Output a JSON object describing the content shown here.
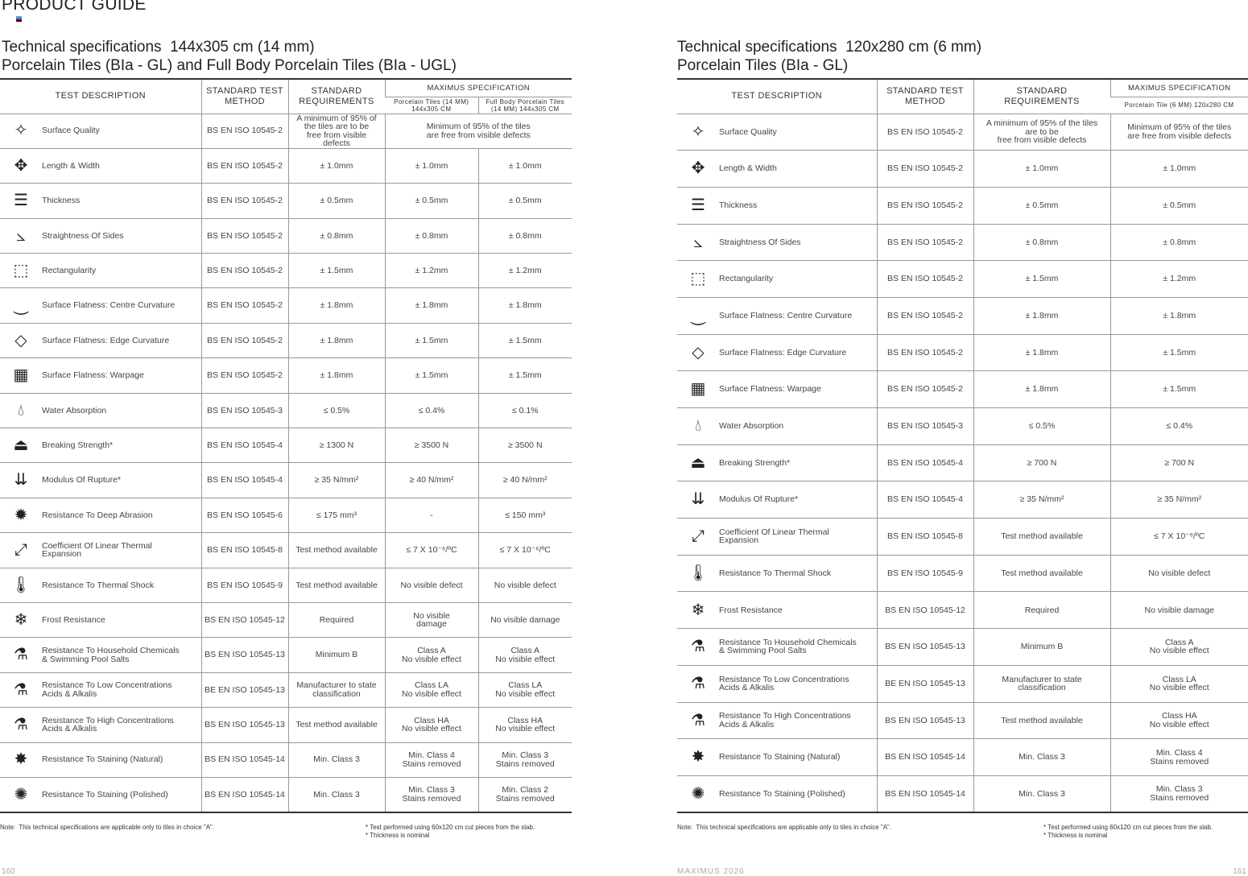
{
  "header": {
    "product_guide": "PRODUCT GUIDE"
  },
  "footer": {
    "left_page": "160",
    "brand": "MAXIMUS 2026",
    "right_page": "161"
  },
  "left": {
    "title": "Technical specifications  144x305 cm (14 mm)\nPorcelain Tiles (BIa - GL) and Full Body Porcelain Tiles (BIa - UGL)",
    "headers": {
      "desc": "TEST DESCRIPTION",
      "method": "STANDARD TEST\nMETHOD",
      "req": "STANDARD\nREQUIREMENTS",
      "spec": "MAXIMUS SPECIFICATION",
      "sub": [
        "Porcelain Tiles (14 MM)\n144x305 CM",
        "Full Body Porcelain Tiles\n(14 MM) 144x305 CM"
      ]
    },
    "rows": [
      {
        "icon": "sparkle-icon",
        "desc": "Surface Quality",
        "method": "BS EN ISO 10545-2",
        "req": "A minimum of 95% of\nthe tiles are to be\nfree from visible\ndefects",
        "merged": "Minimum of 95% of the tiles\nare free from visible defects"
      },
      {
        "icon": "arrows-icon",
        "desc": "Length & Width",
        "method": "BS EN ISO 10545-2",
        "req": "± 1.0mm",
        "vals": [
          "± 1.0mm",
          "± 1.0mm"
        ]
      },
      {
        "icon": "thickness-icon",
        "desc": "Thickness",
        "method": "BS EN ISO 10545-2",
        "req": "± 0.5mm",
        "vals": [
          "± 0.5mm",
          "± 0.5mm"
        ]
      },
      {
        "icon": "angle-icon",
        "desc": "Straightness Of Sides",
        "method": "BS EN ISO 10545-2",
        "req": "± 0.8mm",
        "vals": [
          "± 0.8mm",
          "± 0.8mm"
        ]
      },
      {
        "icon": "dashed-rect-icon",
        "desc": "Rectangularity",
        "method": "BS EN ISO 10545-2",
        "req": "± 1.5mm",
        "vals": [
          "± 1.2mm",
          "± 1.2mm"
        ]
      },
      {
        "icon": "curve-icon",
        "desc": "Surface Flatness: Centre Curvature",
        "method": "BS EN ISO 10545-2",
        "req": "± 1.8mm",
        "vals": [
          "± 1.8mm",
          "± 1.8mm"
        ]
      },
      {
        "icon": "diamond-icon",
        "desc": "Surface Flatness: Edge Curvature",
        "method": "BS EN ISO 10545-2",
        "req": "± 1.8mm",
        "vals": [
          "± 1.5mm",
          "± 1.5mm"
        ]
      },
      {
        "icon": "warp-grid-icon",
        "desc": "Surface Flatness: Warpage",
        "method": "BS EN ISO 10545-2",
        "req": "± 1.8mm",
        "vals": [
          "± 1.5mm",
          "± 1.5mm"
        ]
      },
      {
        "icon": "water-drop-icon",
        "desc": "Water Absorption",
        "method": "BS EN ISO 10545-3",
        "req": "≤ 0.5%",
        "vals": [
          "≤ 0.4%",
          "≤ 0.1%"
        ]
      },
      {
        "icon": "weight-icon",
        "desc": "Breaking Strength*",
        "method": "BS EN ISO 10545-4",
        "req": "≥ 1300 N",
        "vals": [
          "≥ 3500 N",
          "≥ 3500 N"
        ]
      },
      {
        "icon": "pressure-arrows-icon",
        "desc": "Modulus Of Rupture*",
        "method": "BS EN ISO 10545-4",
        "req": "≥ 35 N/mm²",
        "vals": [
          "≥ 40 N/mm²",
          "≥ 40 N/mm²"
        ]
      },
      {
        "icon": "abrasion-icon",
        "desc": "Resistance To Deep Abrasion",
        "method": "BS EN ISO 10545-6",
        "req": "≤ 175 mm³",
        "vals": [
          "-",
          "≤ 150 mm³"
        ]
      },
      {
        "icon": "expand-icon",
        "desc": "Coefficient Of Linear Thermal\nExpansion",
        "method": "BS EN ISO 10545-8",
        "req": "Test method available",
        "vals": [
          "≤ 7 X 10⁻⁶/ºC",
          "≤ 7 X 10⁻⁶/ºC"
        ]
      },
      {
        "icon": "thermometer-icon",
        "desc": "Resistance To Thermal Shock",
        "method": "BS EN ISO 10545-9",
        "req": "Test method available",
        "vals": [
          "No visible defect",
          "No visible defect"
        ]
      },
      {
        "icon": "snowflake-icon",
        "desc": "Frost Resistance",
        "method": "BS EN ISO 10545-12",
        "req": "Required",
        "vals": [
          "No visible\ndamage",
          "No visible damage"
        ]
      },
      {
        "icon": "chemical-drop-icon",
        "desc": "Resistance To Household Chemicals\n& Swimming Pool Salts",
        "method": "BS EN ISO 10545-13",
        "req": "Minimum B",
        "vals": [
          "Class A\nNo visible effect",
          "Class A\nNo visible effect"
        ]
      },
      {
        "icon": "test-tube-icon",
        "desc": "Resistance To Low Concentrations\nAcids & Alkalis",
        "method": "BE EN ISO 10545-13",
        "req": "Manufacturer to state\nclassification",
        "vals": [
          "Class LA\nNo visible effect",
          "Class LA\nNo visible effect"
        ]
      },
      {
        "icon": "test-tube-spill-icon",
        "desc": "Resistance To High Concentrations\nAcids & Alkalis",
        "method": "BS EN ISO 10545-13",
        "req": "Test method available",
        "vals": [
          "Class HA\nNo visible effect",
          "Class HA\nNo visible effect"
        ]
      },
      {
        "icon": "stain-icon",
        "desc": "Resistance To Staining (Natural)",
        "method": "BS EN ISO 10545-14",
        "req": "Min. Class 3",
        "vals": [
          "Min. Class 4\nStains removed",
          "Min. Class 3\nStains removed"
        ]
      },
      {
        "icon": "stain-polished-icon",
        "desc": "Resistance To Staining (Polished)",
        "method": "BS EN ISO 10545-14",
        "req": "Min. Class 3",
        "vals": [
          "Min. Class 3\nStains removed",
          "Min. Class 2\nStains removed"
        ]
      }
    ],
    "note": "Note:  This technical specifications are applicable only to tiles in choice \"A\".",
    "footnote": "* Test performed using 60x120 cm cut pieces from the slab.\n* Thickness is nominal"
  },
  "right": {
    "title": "Technical specifications  120x280 cm (6 mm)\nPorcelain Tiles (BIa - GL)",
    "headers": {
      "desc": "TEST DESCRIPTION",
      "method": "STANDARD TEST\nMETHOD",
      "req": "STANDARD\nREQUIREMENTS",
      "spec": "MAXIMUS SPECIFICATION",
      "sub": [
        "Porcelain Tile (6 MM) 120x280 CM"
      ]
    },
    "rows": [
      {
        "icon": "sparkle-icon",
        "desc": "Surface Quality",
        "method": "BS EN ISO 10545-2",
        "req": "A minimum of 95% of the tiles\nare to be\nfree from visible defects",
        "vals": [
          "Minimum of 95% of the tiles\nare free from visible defects"
        ]
      },
      {
        "icon": "arrows-icon",
        "desc": "Length & Width",
        "method": "BS EN ISO 10545-2",
        "req": "± 1.0mm",
        "vals": [
          "± 1.0mm"
        ]
      },
      {
        "icon": "thickness-icon",
        "desc": "Thickness",
        "method": "BS EN ISO 10545-2",
        "req": "± 0.5mm",
        "vals": [
          "± 0.5mm"
        ]
      },
      {
        "icon": "angle-icon",
        "desc": "Straightness Of Sides",
        "method": "BS EN ISO 10545-2",
        "req": "± 0.8mm",
        "vals": [
          "± 0.8mm"
        ]
      },
      {
        "icon": "dashed-rect-icon",
        "desc": "Rectangularity",
        "method": "BS EN ISO 10545-2",
        "req": "± 1.5mm",
        "vals": [
          "± 1.2mm"
        ]
      },
      {
        "icon": "curve-icon",
        "desc": "Surface Flatness: Centre Curvature",
        "method": "BS EN ISO 10545-2",
        "req": "± 1.8mm",
        "vals": [
          "± 1.8mm"
        ]
      },
      {
        "icon": "diamond-icon",
        "desc": "Surface Flatness: Edge Curvature",
        "method": "BS EN ISO 10545-2",
        "req": "± 1.8mm",
        "vals": [
          "± 1.5mm"
        ]
      },
      {
        "icon": "warp-grid-icon",
        "desc": "Surface Flatness: Warpage",
        "method": "BS EN ISO 10545-2",
        "req": "± 1.8mm",
        "vals": [
          "± 1.5mm"
        ]
      },
      {
        "icon": "water-drop-icon",
        "desc": "Water Absorption",
        "method": "BS EN ISO 10545-3",
        "req": "≤ 0.5%",
        "vals": [
          "≤ 0.4%"
        ]
      },
      {
        "icon": "weight-icon",
        "desc": "Breaking Strength*",
        "method": "BS EN ISO 10545-4",
        "req": "≥ 700 N",
        "vals": [
          "≥ 700 N"
        ]
      },
      {
        "icon": "pressure-arrows-icon",
        "desc": "Modulus Of Rupture*",
        "method": "BS EN ISO 10545-4",
        "req": "≥ 35 N/mm²",
        "vals": [
          "≥ 35 N/mm²"
        ]
      },
      {
        "icon": "expand-icon",
        "desc": "Coefficient Of Linear Thermal\nExpansion",
        "method": "BS EN ISO 10545-8",
        "req": "Test method available",
        "vals": [
          "≤ 7 X 10⁻⁶/ºC"
        ]
      },
      {
        "icon": "thermometer-icon",
        "desc": "Resistance To Thermal Shock",
        "method": "BS EN ISO 10545-9",
        "req": "Test method available",
        "vals": [
          "No visible defect"
        ]
      },
      {
        "icon": "snowflake-icon",
        "desc": "Frost Resistance",
        "method": "BS EN ISO 10545-12",
        "req": "Required",
        "vals": [
          "No visible damage"
        ]
      },
      {
        "icon": "chemical-drop-icon",
        "desc": "Resistance To Household Chemicals\n& Swimming Pool Salts",
        "method": "BS EN ISO 10545-13",
        "req": "Minimum B",
        "vals": [
          "Class A\nNo visible effect"
        ]
      },
      {
        "icon": "test-tube-icon",
        "desc": "Resistance To Low Concentrations\nAcids & Alkalis",
        "method": "BE EN ISO 10545-13",
        "req": "Manufacturer to state\nclassification",
        "vals": [
          "Class LA\nNo visible effect"
        ]
      },
      {
        "icon": "test-tube-spill-icon",
        "desc": "Resistance To High Concentrations\nAcids & Alkalis",
        "method": "BS EN ISO 10545-13",
        "req": "Test method available",
        "vals": [
          "Class HA\nNo visible effect"
        ]
      },
      {
        "icon": "stain-icon",
        "desc": "Resistance To Staining (Natural)",
        "method": "BS EN ISO 10545-14",
        "req": "Min. Class 3",
        "vals": [
          "Min. Class 4\nStains removed"
        ]
      },
      {
        "icon": "stain-polished-icon",
        "desc": "Resistance To Staining (Polished)",
        "method": "BS EN ISO 10545-14",
        "req": "Min. Class 3",
        "vals": [
          "Min. Class 3\nStains removed"
        ]
      }
    ],
    "note": "Note:  This technical specifications are applicable only to tiles in choice \"A\".",
    "footnote": "* Test performed using 60x120 cm cut pieces from the slab.\n* Thickness is nominal"
  }
}
